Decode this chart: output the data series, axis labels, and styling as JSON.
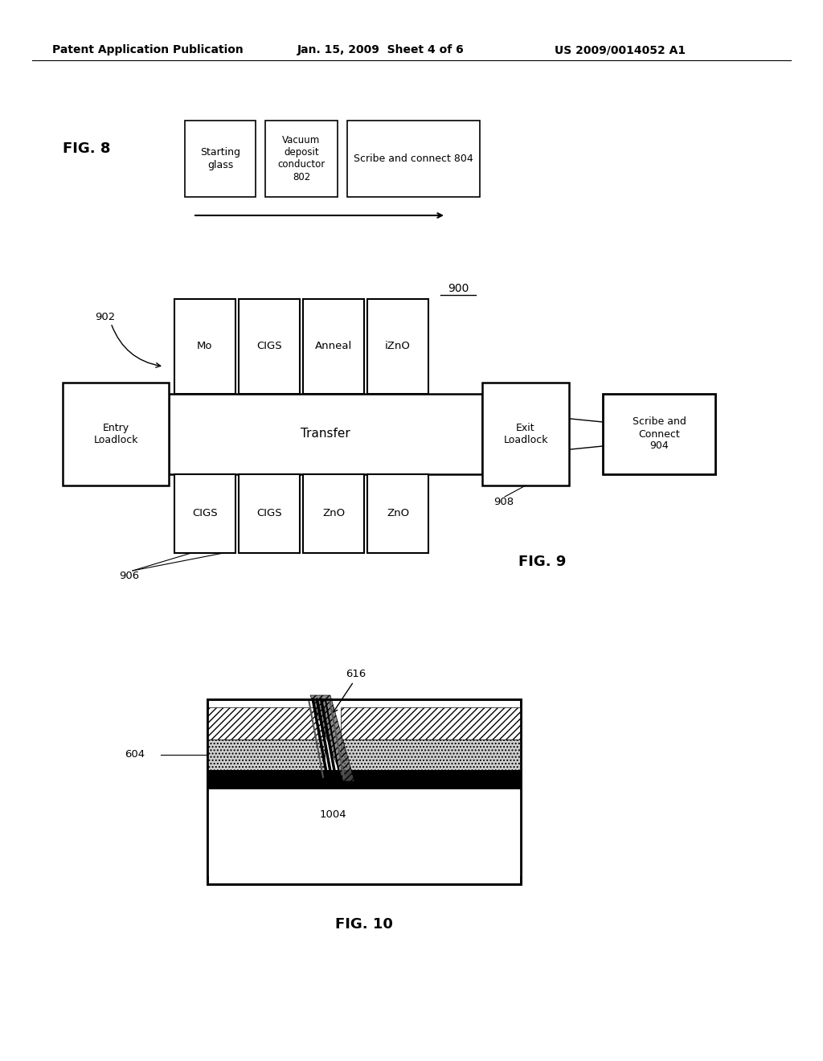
{
  "header_left": "Patent Application Publication",
  "header_mid": "Jan. 15, 2009  Sheet 4 of 6",
  "header_right": "US 2009/0014052 A1",
  "fig8_label": "FIG. 8",
  "fig9_label": "FIG. 9",
  "fig9_ref900": "900",
  "fig9_ref902": "902",
  "fig9_ref906": "906",
  "fig9_ref908": "908",
  "fig10_label": "FIG. 10",
  "fig10_ref616": "616",
  "fig10_ref604": "604",
  "fig10_ref1004": "1004"
}
